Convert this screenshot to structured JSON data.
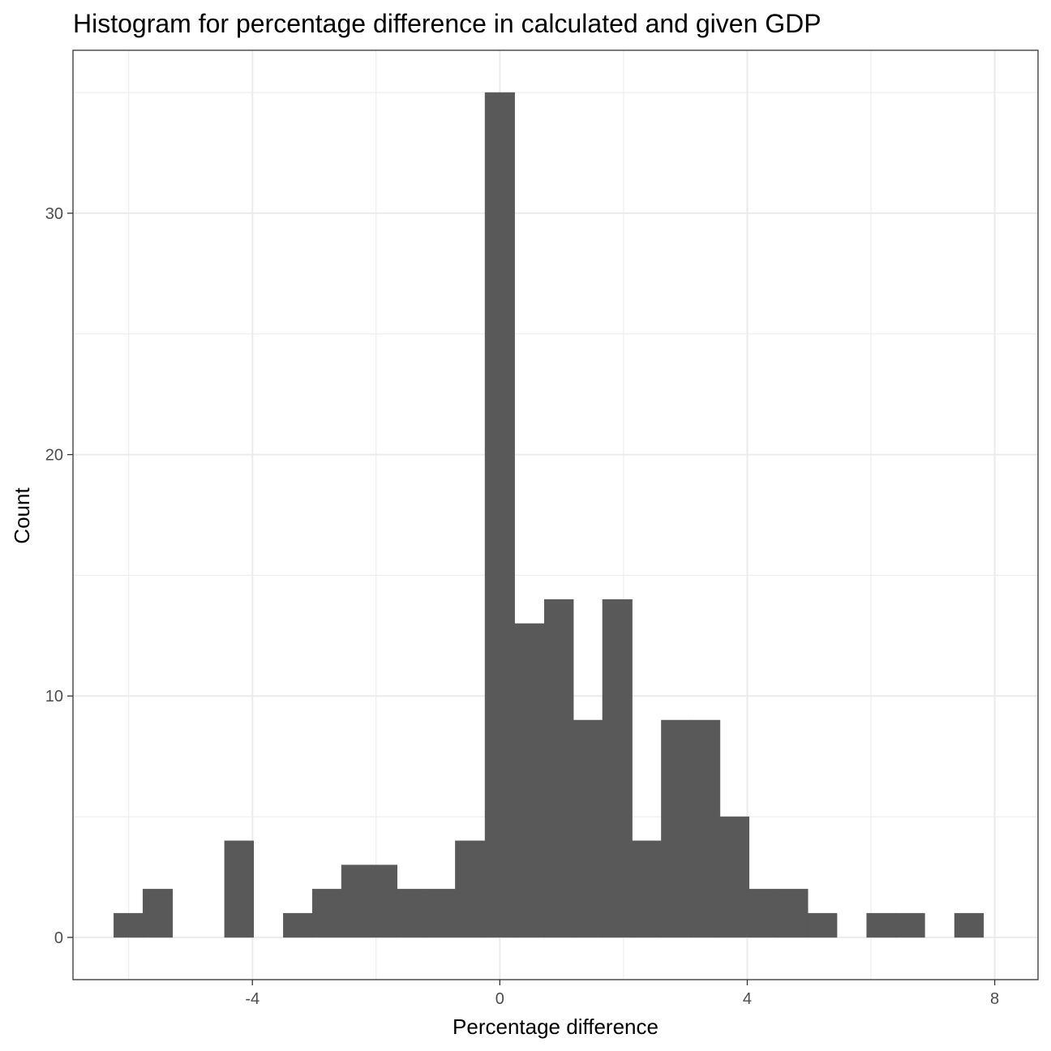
{
  "chart_data": {
    "type": "bar",
    "title": "Histogram for percentage difference in calculated and given GDP",
    "xlabel": "Percentage difference",
    "ylabel": "Count",
    "xlim": [
      -6.9,
      8.7
    ],
    "ylim": [
      -1.75,
      36.75
    ],
    "x_ticks": [
      {
        "value": -4,
        "label": "-4"
      },
      {
        "value": 0,
        "label": "0"
      },
      {
        "value": 4,
        "label": "4"
      },
      {
        "value": 8,
        "label": "8"
      }
    ],
    "y_ticks": [
      {
        "value": 0,
        "label": "0"
      },
      {
        "value": 10,
        "label": "10"
      },
      {
        "value": 20,
        "label": "20"
      },
      {
        "value": 30,
        "label": "30"
      }
    ],
    "x_minor": [
      -6,
      -2,
      2,
      6
    ],
    "y_minor": [
      5,
      15,
      25,
      35
    ],
    "grid": true,
    "bar_color": "#595959",
    "bins": [
      {
        "x0": -6.24,
        "x1": -5.77,
        "count": 1
      },
      {
        "x0": -5.77,
        "x1": -5.29,
        "count": 2
      },
      {
        "x0": -5.29,
        "x1": -4.82,
        "count": 0
      },
      {
        "x0": -4.82,
        "x1": -4.45,
        "count": 0
      },
      {
        "x0": -4.45,
        "x1": -3.98,
        "count": 4
      },
      {
        "x0": -3.98,
        "x1": -3.5,
        "count": 0
      },
      {
        "x0": -3.5,
        "x1": -3.03,
        "count": 1
      },
      {
        "x0": -3.03,
        "x1": -2.56,
        "count": 2
      },
      {
        "x0": -2.56,
        "x1": -2.09,
        "count": 3
      },
      {
        "x0": -2.09,
        "x1": -1.66,
        "count": 3
      },
      {
        "x0": -1.66,
        "x1": -1.19,
        "count": 2
      },
      {
        "x0": -1.19,
        "x1": -0.72,
        "count": 2
      },
      {
        "x0": -0.72,
        "x1": -0.24,
        "count": 4
      },
      {
        "x0": -0.24,
        "x1": 0.24,
        "count": 35
      },
      {
        "x0": 0.24,
        "x1": 0.72,
        "count": 13
      },
      {
        "x0": 0.72,
        "x1": 1.19,
        "count": 14
      },
      {
        "x0": 1.19,
        "x1": 1.66,
        "count": 9
      },
      {
        "x0": 1.66,
        "x1": 2.14,
        "count": 14
      },
      {
        "x0": 2.14,
        "x1": 2.61,
        "count": 4
      },
      {
        "x0": 2.61,
        "x1": 3.08,
        "count": 9
      },
      {
        "x0": 3.08,
        "x1": 3.56,
        "count": 9
      },
      {
        "x0": 3.56,
        "x1": 4.03,
        "count": 5
      },
      {
        "x0": 4.03,
        "x1": 4.5,
        "count": 2
      },
      {
        "x0": 4.5,
        "x1": 4.98,
        "count": 2
      },
      {
        "x0": 4.98,
        "x1": 5.45,
        "count": 1
      },
      {
        "x0": 5.45,
        "x1": 5.93,
        "count": 0
      },
      {
        "x0": 5.93,
        "x1": 6.4,
        "count": 1
      },
      {
        "x0": 6.4,
        "x1": 6.87,
        "count": 1
      },
      {
        "x0": 6.87,
        "x1": 7.35,
        "count": 0
      },
      {
        "x0": 7.35,
        "x1": 7.82,
        "count": 1
      }
    ]
  }
}
